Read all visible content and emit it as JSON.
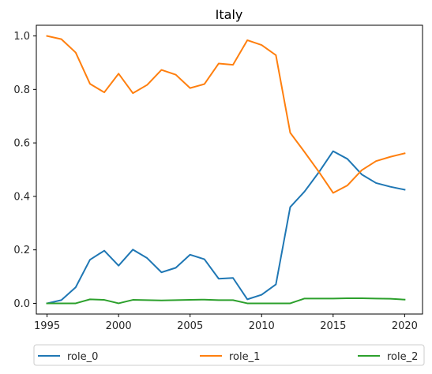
{
  "chart_data": {
    "type": "line",
    "title": "Italy",
    "xlabel": "",
    "ylabel": "",
    "xlim": [
      1994.25,
      2021.25
    ],
    "ylim": [
      -0.04,
      1.04
    ],
    "xticks": [
      1995,
      2000,
      2005,
      2010,
      2015,
      2020
    ],
    "yticks": [
      0.0,
      0.2,
      0.4,
      0.6,
      0.8,
      1.0
    ],
    "ytick_labels": [
      "0.0",
      "0.2",
      "0.4",
      "0.6",
      "0.8",
      "1.0"
    ],
    "grid": false,
    "legend_position": "below",
    "x": [
      1995,
      1996,
      1997,
      1998,
      1999,
      2000,
      2001,
      2002,
      2003,
      2004,
      2005,
      2006,
      2007,
      2008,
      2009,
      2010,
      2011,
      2012,
      2013,
      2014,
      2015,
      2016,
      2017,
      2018,
      2019,
      2020
    ],
    "series": [
      {
        "name": "role_0",
        "color": "#1f77b4",
        "values": [
          0.0,
          0.012,
          0.06,
          0.163,
          0.197,
          0.141,
          0.201,
          0.169,
          0.116,
          0.133,
          0.182,
          0.165,
          0.092,
          0.095,
          0.015,
          0.032,
          0.071,
          0.36,
          0.418,
          0.49,
          0.569,
          0.54,
          0.482,
          0.45,
          0.436,
          0.425
        ]
      },
      {
        "name": "role_1",
        "color": "#ff7f0e",
        "values": [
          1.0,
          0.988,
          0.938,
          0.821,
          0.789,
          0.859,
          0.786,
          0.817,
          0.873,
          0.855,
          0.805,
          0.82,
          0.897,
          0.892,
          0.984,
          0.966,
          0.928,
          0.638,
          0.566,
          0.492,
          0.413,
          0.441,
          0.498,
          0.532,
          0.548,
          0.561
        ]
      },
      {
        "name": "role_2",
        "color": "#2ca02c",
        "values": [
          0.0,
          0.0,
          0.0,
          0.015,
          0.013,
          0.0,
          0.013,
          0.012,
          0.011,
          0.012,
          0.013,
          0.014,
          0.012,
          0.012,
          0.0,
          0.0,
          0.0,
          0.0,
          0.018,
          0.018,
          0.018,
          0.019,
          0.019,
          0.018,
          0.017,
          0.014
        ]
      }
    ]
  }
}
